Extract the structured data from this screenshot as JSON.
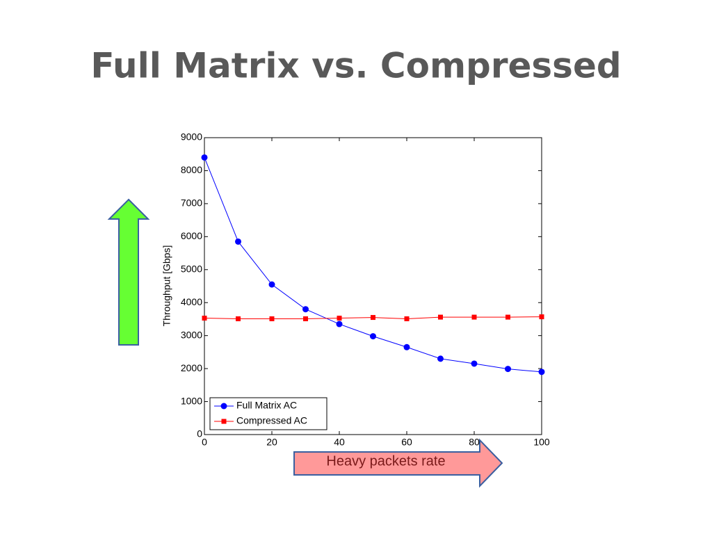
{
  "chart_data": {
    "type": "line",
    "title": "Full Matrix vs. Compressed",
    "ylabel": "Throughput [Gbps]",
    "annotation": "Heavy packets rate",
    "x": [
      0,
      10,
      20,
      30,
      40,
      50,
      60,
      70,
      80,
      90,
      100
    ],
    "xlim": [
      0,
      100
    ],
    "xticks": [
      0,
      20,
      40,
      60,
      80,
      100
    ],
    "ylim": [
      0,
      9000
    ],
    "yticks": [
      0,
      1000,
      2000,
      3000,
      4000,
      5000,
      6000,
      7000,
      8000,
      9000
    ],
    "grid": false,
    "legend": "lower left",
    "series": [
      {
        "name": "Full Matrix AC",
        "color": "#0000ff",
        "marker": "circle",
        "values": [
          8400,
          5850,
          4550,
          3800,
          3350,
          2980,
          2650,
          2300,
          2150,
          1990,
          1900
        ]
      },
      {
        "name": "Compressed AC",
        "color": "#ff0000",
        "marker": "square",
        "values": [
          3530,
          3510,
          3510,
          3510,
          3530,
          3550,
          3510,
          3560,
          3560,
          3560,
          3570
        ]
      }
    ]
  }
}
